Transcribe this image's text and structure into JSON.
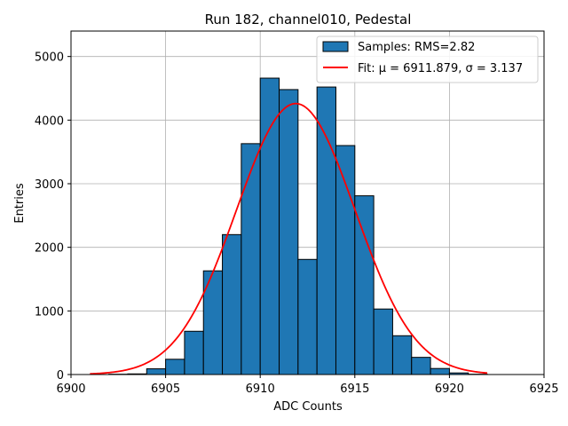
{
  "chart_data": {
    "type": "bar",
    "title": "Run 182, channel010, Pedestal",
    "xlabel": "ADC Counts",
    "ylabel": "Entries",
    "xlim": [
      6900,
      6925
    ],
    "ylim": [
      0,
      5400
    ],
    "xticks": [
      6900,
      6905,
      6910,
      6915,
      6920,
      6925
    ],
    "yticks": [
      0,
      1000,
      2000,
      3000,
      4000,
      5000
    ],
    "grid": true,
    "legend_position": "top-right",
    "bin_edges": [
      6902,
      6903,
      6904,
      6905,
      6906,
      6907,
      6908,
      6909,
      6910,
      6911,
      6912,
      6913,
      6914,
      6915,
      6916,
      6917,
      6918,
      6919,
      6920,
      6921,
      6922
    ],
    "series": [
      {
        "name": "Samples: RMS=2.82",
        "kind": "histogram",
        "color": "#1f77b4",
        "values": [
          5,
          10,
          90,
          240,
          680,
          1630,
          2200,
          3630,
          4660,
          4480,
          1810,
          4520,
          3600,
          2810,
          1030,
          610,
          270,
          95,
          25,
          5
        ]
      },
      {
        "name": "Fit: μ = 6911.879, σ = 3.137",
        "kind": "gaussian_fit",
        "color": "#ff0000",
        "mu": 6911.879,
        "sigma": 3.137,
        "amplitude": 4260,
        "x_range": [
          6901,
          6922
        ]
      }
    ]
  }
}
